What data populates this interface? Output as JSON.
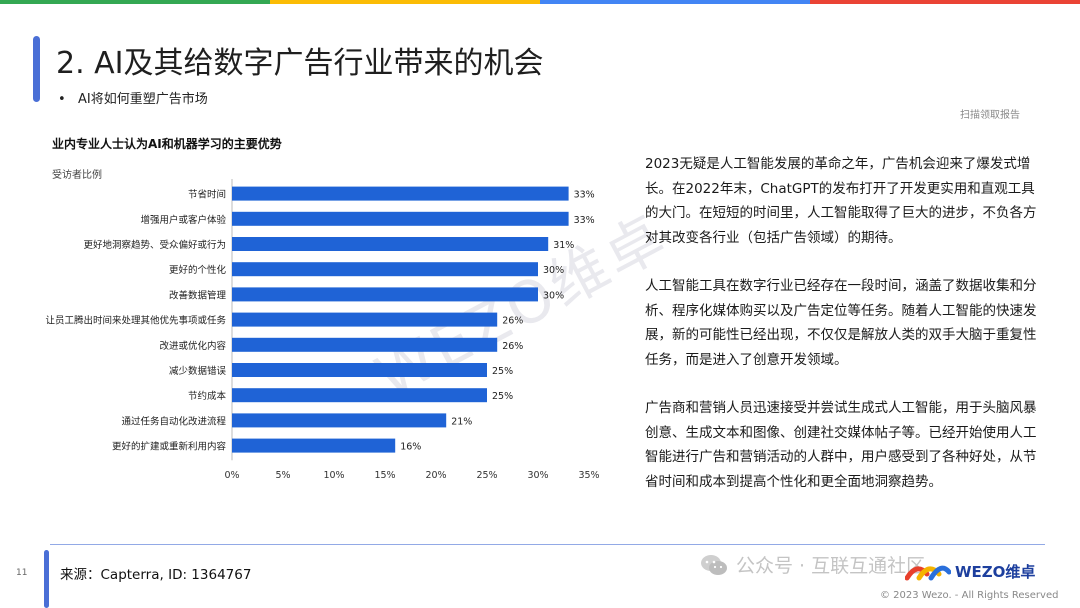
{
  "colors": {
    "bar": "#1f63d6",
    "accent": "#4a6fd6",
    "topbar": [
      "#34a853",
      "#fbbc05",
      "#4285f4",
      "#ea4335"
    ]
  },
  "header": {
    "title": "2. AI及其给数字广告行业带来的机会",
    "bullet": "AI将如何重塑广告市场",
    "scan_note": "扫描领取报告"
  },
  "chart_data": {
    "type": "bar",
    "orientation": "horizontal",
    "title": "业内专业人士认为AI和机器学习的主要优势",
    "ylabel": "受访者比例",
    "categories": [
      "节省时间",
      "增强用户或客户体验",
      "更好地洞察趋势、受众偏好或行为",
      "更好的个性化",
      "改善数据管理",
      "让员工腾出时间来处理其他优先事项或任务",
      "改进或优化内容",
      "减少数据错误",
      "节约成本",
      "通过任务自动化改进流程",
      "更好的扩建或重新利用内容"
    ],
    "values": [
      33,
      33,
      31,
      30,
      30,
      26,
      26,
      25,
      25,
      21,
      16
    ],
    "value_labels": [
      "33%",
      "33%",
      "31%",
      "30%",
      "30%",
      "26%",
      "26%",
      "25%",
      "25%",
      "21%",
      "16%"
    ],
    "xlim": [
      0,
      35
    ],
    "xticks": [
      0,
      5,
      10,
      15,
      20,
      25,
      30,
      35
    ],
    "xtick_labels": [
      "0%",
      "5%",
      "10%",
      "15%",
      "20%",
      "25%",
      "30%",
      "35%"
    ]
  },
  "body": {
    "paragraphs": [
      "2023无疑是人工智能发展的革命之年，广告机会迎来了爆发式增长。在2022年末，ChatGPT的发布打开了开发更实用和直观工具的大门。在短短的时间里，人工智能取得了巨大的进步，不负各方对其改变各行业（包括广告领域）的期待。",
      "人工智能工具在数字行业已经存在一段时间，涵盖了数据收集和分析、程序化媒体购买以及广告定位等任务。随着人工智能的快速发展，新的可能性已经出现，不仅仅是解放人类的双手大脑于重复性任务，而是进入了创意开发领域。",
      "广告商和营销人员迅速接受并尝试生成式人工智能，用于头脑风暴创意、生成文本和图像、创建社交媒体帖子等。已经开始使用人工智能进行广告和营销活动的人群中，用户感受到了各种好处，从节省时间和成本到提高个性化和更全面地洞察趋势。"
    ]
  },
  "footer": {
    "page_number": "11",
    "source": "来源：Capterra, ID: 1364767",
    "wechat": "公众号 · 互联互通社区",
    "brand": "WEZO维卓",
    "copyright": "© 2023 Wezo. - All Rights Reserved"
  },
  "watermark": "WEZO维卓"
}
